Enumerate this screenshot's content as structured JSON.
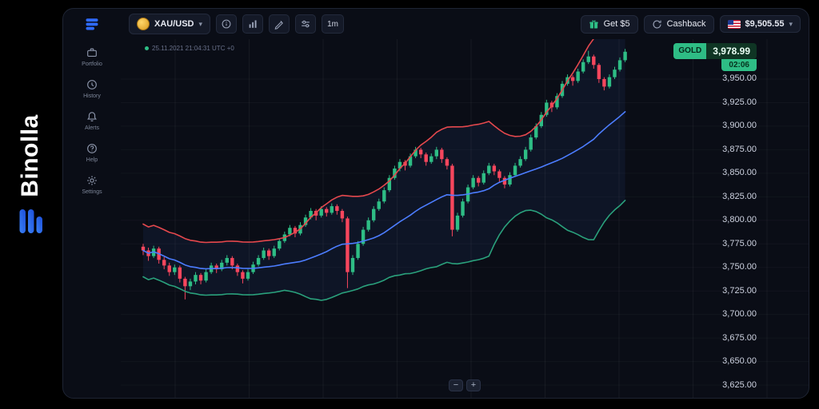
{
  "brand": {
    "name": "Binolla",
    "accent": "#2f6bff"
  },
  "sidebar": {
    "items": [
      {
        "label": "Portfolio"
      },
      {
        "label": "History"
      },
      {
        "label": "Alerts"
      },
      {
        "label": "Help"
      },
      {
        "label": "Settings"
      }
    ]
  },
  "topbar": {
    "asset": {
      "label": "XAU/USD"
    },
    "timeframe": "1m",
    "get_bonus": "Get $5",
    "cashback": "Cashback",
    "balance": "$9,505.55"
  },
  "chart": {
    "timestamp": "25.11.2021 21:04:31 UTC +0",
    "ticker": {
      "symbol": "GOLD",
      "price": "3,978.99",
      "countdown": "02:06"
    },
    "zoom_out": "−",
    "zoom_in": "+",
    "price_labels": [
      "3,950.00",
      "3,925.00",
      "3,900.00",
      "3,875.00",
      "3,850.00",
      "3,825.00",
      "3,800.00",
      "3,775.00",
      "3,750.00",
      "3,725.00",
      "3,700.00",
      "3,675.00",
      "3,650.00",
      "3,625.00"
    ]
  },
  "chart_data": {
    "type": "candlestick",
    "symbol": "XAU/USD",
    "interval": "1m",
    "current_price": 3978.99,
    "ylim": [
      3611.5,
      3992.4
    ],
    "bollinger": {
      "period": 28,
      "mult": 2,
      "min_sd": 14
    },
    "colors": {
      "up": "#2ebd85",
      "down": "#f6465d",
      "band_upper": "#e5484d",
      "band_middle": "#4c7dff",
      "band_lower": "#2aa17c",
      "band_fill": "rgba(76,125,255,0.07)",
      "grid": "rgba(255,255,255,0.05)",
      "grid_h": "rgba(255,255,255,0.035)"
    },
    "candles": [
      [
        3772,
        3775,
        3763,
        3768
      ],
      [
        3768,
        3771,
        3757,
        3762
      ],
      [
        3762,
        3773,
        3760,
        3770
      ],
      [
        3770,
        3772,
        3754,
        3758
      ],
      [
        3758,
        3761,
        3748,
        3752
      ],
      [
        3752,
        3755,
        3741,
        3745
      ],
      [
        3745,
        3753,
        3742,
        3750
      ],
      [
        3750,
        3752,
        3734,
        3738
      ],
      [
        3738,
        3740,
        3716,
        3730
      ],
      [
        3730,
        3738,
        3726,
        3735
      ],
      [
        3735,
        3745,
        3732,
        3742
      ],
      [
        3742,
        3744,
        3732,
        3736
      ],
      [
        3736,
        3748,
        3734,
        3745
      ],
      [
        3745,
        3755,
        3743,
        3752
      ],
      [
        3752,
        3754,
        3744,
        3748
      ],
      [
        3748,
        3758,
        3746,
        3755
      ],
      [
        3755,
        3763,
        3752,
        3760
      ],
      [
        3760,
        3762,
        3748,
        3752
      ],
      [
        3752,
        3754,
        3741,
        3745
      ],
      [
        3745,
        3747,
        3733,
        3738
      ],
      [
        3738,
        3748,
        3736,
        3745
      ],
      [
        3745,
        3756,
        3743,
        3753
      ],
      [
        3753,
        3763,
        3751,
        3760
      ],
      [
        3760,
        3771,
        3758,
        3768
      ],
      [
        3768,
        3770,
        3758,
        3762
      ],
      [
        3762,
        3773,
        3760,
        3770
      ],
      [
        3770,
        3781,
        3768,
        3778
      ],
      [
        3778,
        3788,
        3776,
        3785
      ],
      [
        3785,
        3795,
        3783,
        3792
      ],
      [
        3792,
        3794,
        3782,
        3786
      ],
      [
        3786,
        3798,
        3784,
        3795
      ],
      [
        3795,
        3806,
        3793,
        3803
      ],
      [
        3803,
        3813,
        3801,
        3810
      ],
      [
        3810,
        3812,
        3800,
        3805
      ],
      [
        3805,
        3815,
        3803,
        3812
      ],
      [
        3812,
        3814,
        3804,
        3808
      ],
      [
        3808,
        3818,
        3806,
        3815
      ],
      [
        3815,
        3817,
        3806,
        3810
      ],
      [
        3810,
        3812,
        3798,
        3802
      ],
      [
        3802,
        3804,
        3728,
        3745
      ],
      [
        3745,
        3763,
        3742,
        3760
      ],
      [
        3760,
        3778,
        3758,
        3775
      ],
      [
        3775,
        3793,
        3773,
        3790
      ],
      [
        3790,
        3803,
        3788,
        3800
      ],
      [
        3800,
        3815,
        3798,
        3812
      ],
      [
        3812,
        3823,
        3810,
        3820
      ],
      [
        3820,
        3835,
        3818,
        3832
      ],
      [
        3832,
        3848,
        3830,
        3845
      ],
      [
        3845,
        3858,
        3843,
        3855
      ],
      [
        3855,
        3865,
        3852,
        3862
      ],
      [
        3862,
        3864,
        3853,
        3858
      ],
      [
        3858,
        3871,
        3856,
        3868
      ],
      [
        3868,
        3878,
        3866,
        3875
      ],
      [
        3875,
        3877,
        3866,
        3870
      ],
      [
        3870,
        3872,
        3858,
        3862
      ],
      [
        3862,
        3871,
        3860,
        3868
      ],
      [
        3868,
        3878,
        3865,
        3875
      ],
      [
        3875,
        3877,
        3861,
        3865
      ],
      [
        3865,
        3867,
        3854,
        3858
      ],
      [
        3858,
        3860,
        3783,
        3790
      ],
      [
        3790,
        3808,
        3788,
        3805
      ],
      [
        3805,
        3823,
        3803,
        3820
      ],
      [
        3820,
        3838,
        3818,
        3835
      ],
      [
        3835,
        3848,
        3833,
        3845
      ],
      [
        3845,
        3847,
        3836,
        3840
      ],
      [
        3840,
        3853,
        3838,
        3850
      ],
      [
        3850,
        3861,
        3848,
        3858
      ],
      [
        3858,
        3860,
        3848,
        3852
      ],
      [
        3852,
        3854,
        3841,
        3845
      ],
      [
        3845,
        3847,
        3834,
        3838
      ],
      [
        3838,
        3851,
        3836,
        3848
      ],
      [
        3848,
        3861,
        3846,
        3858
      ],
      [
        3858,
        3868,
        3856,
        3865
      ],
      [
        3865,
        3878,
        3863,
        3875
      ],
      [
        3875,
        3891,
        3873,
        3888
      ],
      [
        3888,
        3903,
        3886,
        3900
      ],
      [
        3900,
        3915,
        3898,
        3912
      ],
      [
        3912,
        3928,
        3910,
        3925
      ],
      [
        3925,
        3927,
        3915,
        3920
      ],
      [
        3920,
        3935,
        3918,
        3932
      ],
      [
        3932,
        3948,
        3930,
        3945
      ],
      [
        3945,
        3955,
        3943,
        3952
      ],
      [
        3952,
        3954,
        3943,
        3948
      ],
      [
        3948,
        3961,
        3946,
        3958
      ],
      [
        3958,
        3971,
        3956,
        3968
      ],
      [
        3968,
        3980,
        3966,
        3974
      ],
      [
        3974,
        3976,
        3961,
        3965
      ],
      [
        3965,
        3967,
        3946,
        3950
      ],
      [
        3950,
        3952,
        3938,
        3942
      ],
      [
        3942,
        3955,
        3940,
        3952
      ],
      [
        3952,
        3963,
        3950,
        3960
      ],
      [
        3960,
        3973,
        3958,
        3970
      ],
      [
        3970,
        3982,
        3968,
        3979
      ]
    ]
  }
}
